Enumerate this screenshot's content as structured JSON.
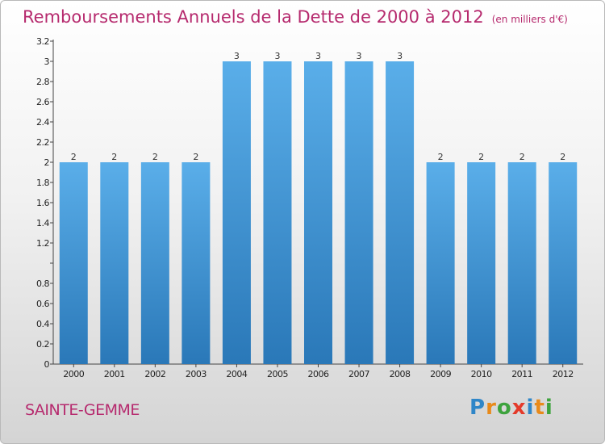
{
  "title": "Remboursements Annuels de la Dette de 2000 à 2012",
  "subtitle": "(en milliers d'€)",
  "commune": "SAINTE-GEMME",
  "logo": {
    "text": "Proxiti",
    "letters": [
      {
        "char": "P",
        "color": "#2f86c8"
      },
      {
        "char": "r",
        "color": "#e88a1a"
      },
      {
        "char": "o",
        "color": "#3da33d"
      },
      {
        "char": "x",
        "color": "#e43a2a"
      },
      {
        "char": "i",
        "color": "#2f86c8"
      },
      {
        "char": "t",
        "color": "#e88a1a"
      },
      {
        "char": "i",
        "color": "#3da33d"
      }
    ]
  },
  "colors": {
    "bar_light": "#5aaee9",
    "bar_dark": "#2a78b8",
    "accent": "#b62a6e"
  },
  "chart_data": {
    "type": "bar",
    "categories": [
      "2000",
      "2001",
      "2002",
      "2003",
      "2004",
      "2005",
      "2006",
      "2007",
      "2008",
      "2009",
      "2010",
      "2011",
      "2012"
    ],
    "values": [
      2,
      2,
      2,
      2,
      3,
      3,
      3,
      3,
      3,
      2,
      2,
      2,
      2
    ],
    "data_labels": [
      "2",
      "2",
      "2",
      "2",
      "3",
      "3",
      "3",
      "3",
      "3",
      "2",
      "2",
      "2",
      "2"
    ],
    "ylim": [
      0,
      3.2
    ],
    "yticks": [
      0,
      0.2,
      0.4,
      0.6,
      0.8,
      1,
      1.2,
      1.4,
      1.6,
      1.8,
      2,
      2.2,
      2.4,
      2.6,
      2.8,
      3,
      3.2
    ],
    "ytick_labels": [
      "0",
      "0.2",
      "0.4",
      "0.6",
      "0.8",
      "",
      "1.2",
      "1.4",
      "1.6",
      "1.8",
      "2",
      "2.2",
      "2.4",
      "2.6",
      "2.8",
      "3",
      "3.2"
    ],
    "grid": false
  }
}
